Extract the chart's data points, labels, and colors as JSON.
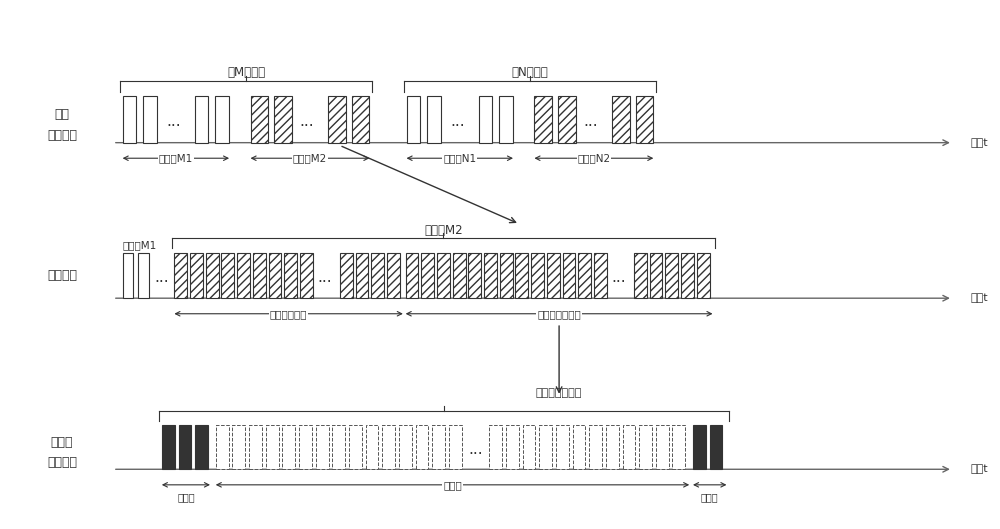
{
  "bg_color": "#ffffff",
  "fig_width": 10.0,
  "fig_height": 5.29,
  "row1_label1": "雷达",
  "row1_label2": "发射波形",
  "row2_label1": "同步机制",
  "row3_label1": "接收机",
  "row3_label2": "发射波形",
  "time_label": "时间t",
  "brace_label_M": "第M次发射",
  "brace_label_N": "第N次发射",
  "group_M1": "脉冲组M1",
  "group_M2": "脉冲组M2",
  "group_N1": "脉冲组N1",
  "group_N2": "脉冲组N2",
  "sync_group_M1": "脉冲组M1",
  "sync_group_M2": "脉冲组M2",
  "sync_frame_label": "帧同步脉冲段",
  "sync_data_label": "数据响应脉冲段",
  "arrow_label_row1_to_row2": "脉冲组M2",
  "arrow_label_row2_to_row3": "数据响应脉冲段",
  "rx_start_label": "起始位",
  "rx_data_label": "数据位",
  "rx_check_label": "校验位"
}
